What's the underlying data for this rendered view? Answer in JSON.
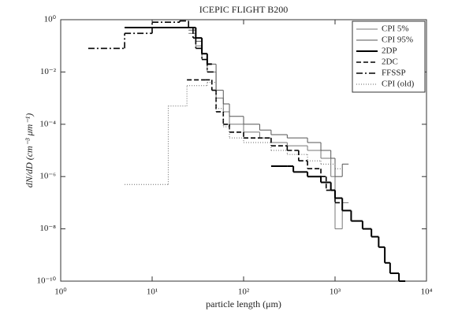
{
  "chart_data": {
    "type": "step",
    "title": "ICEPIC FLIGHT B200",
    "x_label": "particle length (μm)",
    "y_label": "dN/dD (cm⁻³ μm⁻¹)",
    "xscale": "log",
    "yscale": "log",
    "xlim": [
      1,
      10000
    ],
    "ylim": [
      1e-10,
      1
    ],
    "xticks": [
      {
        "value": 1,
        "label": "10⁰"
      },
      {
        "value": 10,
        "label": "10¹"
      },
      {
        "value": 100,
        "label": "10²"
      },
      {
        "value": 1000,
        "label": "10³"
      },
      {
        "value": 10000,
        "label": "10⁴"
      }
    ],
    "yticks": [
      {
        "value": 1,
        "label": "10⁰"
      },
      {
        "value": 0.01,
        "label": "10⁻²"
      },
      {
        "value": 0.0001,
        "label": "10⁻⁴"
      },
      {
        "value": 1e-06,
        "label": "10⁻⁶"
      },
      {
        "value": 1e-08,
        "label": "10⁻⁸"
      },
      {
        "value": 1e-10,
        "label": "10⁻¹⁰"
      }
    ],
    "legend": "upper right",
    "series": [
      {
        "name": "CPI 5%",
        "color": "#777777",
        "linestyle": "solid",
        "linewidth": 1,
        "x": [
          25,
          30,
          35,
          40,
          50,
          60,
          70,
          100,
          150,
          200,
          300,
          500,
          700,
          900,
          1000,
          1200
        ],
        "values": [
          0.3,
          0.1,
          0.03,
          0.01,
          0.001,
          0.0003,
          0.0001,
          5e-05,
          3e-05,
          2e-05,
          1.5e-05,
          1e-05,
          5e-06,
          1e-06,
          1e-08,
          1e-07
        ]
      },
      {
        "name": "CPI 95%",
        "color": "#555555",
        "linestyle": "solid",
        "linewidth": 1,
        "x": [
          25,
          30,
          35,
          40,
          50,
          60,
          70,
          100,
          150,
          200,
          300,
          500,
          700,
          900,
          1000,
          1200
        ],
        "values": [
          0.4,
          0.15,
          0.05,
          0.02,
          0.002,
          0.0006,
          0.0002,
          0.0001,
          6e-05,
          4e-05,
          3e-05,
          2e-05,
          1e-05,
          5e-06,
          1e-06,
          3e-06
        ]
      },
      {
        "name": "2DP",
        "color": "#000000",
        "linestyle": "solid",
        "linewidth": 2,
        "x": [
          5,
          25,
          30,
          35,
          40,
          45,
          200,
          300,
          350,
          500,
          700,
          900,
          1000,
          1200,
          1500,
          2000,
          2500,
          3000,
          3500,
          4000,
          5000
        ],
        "values": [
          0.5,
          0.5,
          0.2,
          0.05,
          0.02,
          null,
          2.5e-06,
          2.5e-06,
          1.5e-06,
          1e-06,
          6e-07,
          3e-07,
          1.5e-07,
          5e-08,
          2e-08,
          1e-08,
          5e-09,
          2e-09,
          5e-10,
          2e-10,
          1e-10
        ]
      },
      {
        "name": "2DC",
        "color": "#000000",
        "linestyle": "dashed",
        "linewidth": 1.6,
        "x": [
          24,
          38,
          45,
          50,
          60,
          70,
          100,
          200,
          300,
          400,
          500,
          700,
          800,
          1000
        ],
        "values": [
          0.005,
          0.005,
          0.002,
          0.0003,
          0.0001,
          5e-05,
          3e-05,
          1.5e-05,
          1e-05,
          4e-06,
          2e-06,
          1e-06,
          3e-07,
          1e-07
        ]
      },
      {
        "name": "FFSSP",
        "color": "#000000",
        "linestyle": "dashdot",
        "linewidth": 1.6,
        "x": [
          2,
          5,
          10,
          20,
          25,
          28,
          30,
          35,
          40
        ],
        "values": [
          0.08,
          0.3,
          0.8,
          0.9,
          0.5,
          0.2,
          0.08,
          0.03,
          0.01
        ]
      },
      {
        "name": "CPI (old)",
        "color": "#666666",
        "linestyle": "dotted",
        "linewidth": 1,
        "x": [
          5,
          15,
          24,
          40,
          50,
          60,
          70,
          100,
          200,
          300,
          500,
          700,
          1000
        ],
        "values": [
          5e-07,
          0.0005,
          0.003,
          0.004,
          0.0004,
          8e-05,
          3e-05,
          2e-05,
          1e-05,
          7e-06,
          4e-06,
          3e-06,
          2e-06
        ]
      }
    ]
  }
}
